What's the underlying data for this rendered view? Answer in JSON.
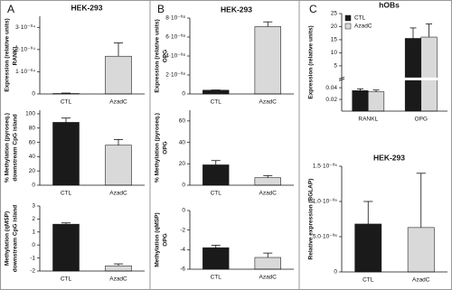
{
  "chart_data": [
    {
      "type": "bar",
      "panel_label": "A",
      "title": "HEK-293",
      "ylabel": [
        "Expression (relative units)",
        "RANKL"
      ],
      "categories": [
        "CTL",
        "AzadC"
      ],
      "values": [
        2e-06,
        0.00017
      ],
      "errors": [
        2e-06,
        6e-05
      ],
      "colors": [
        "#1a1a1a",
        "#d9d9d9"
      ],
      "ylim": [
        0,
        0.00035
      ],
      "yticks": [
        0,
        {
          "value": 0.0001,
          "label": "1·10⁻⁰⁴"
        },
        {
          "value": 0.0002,
          "label": "2·10⁻⁰⁴"
        },
        {
          "value": 0.0003,
          "label": "3·10⁻⁰⁴"
        }
      ]
    },
    {
      "type": "bar",
      "ylabel": [
        "% Methylation (pyroseq.)",
        "downstream CpG island"
      ],
      "categories": [
        "CTL",
        "AzadC"
      ],
      "values": [
        88,
        56
      ],
      "errors": [
        6,
        8
      ],
      "colors": [
        "#1a1a1a",
        "#d9d9d9"
      ],
      "ylim": [
        0,
        105
      ],
      "yticks": [
        0,
        20,
        40,
        60,
        80,
        100
      ]
    },
    {
      "type": "bar",
      "ylabel": [
        "Methylation (qMSP)",
        "downstream CpG island"
      ],
      "categories": [
        "CTL",
        "AzadC"
      ],
      "values": [
        1.6,
        -1.6
      ],
      "errors": [
        0.1,
        0.15
      ],
      "colors": [
        "#1a1a1a",
        "#d9d9d9"
      ],
      "ylim": [
        -2,
        3
      ],
      "yticks": [
        -2,
        -1,
        0,
        1,
        2,
        3
      ]
    },
    {
      "type": "bar",
      "panel_label": "B",
      "title": "HEK-293",
      "ylabel": [
        "Expression (relative units)",
        "OPG"
      ],
      "categories": [
        "CTL",
        "AzadC"
      ],
      "values": [
        4e-09,
        7.1e-08
      ],
      "errors": [
        2e-10,
        5e-09
      ],
      "colors": [
        "#1a1a1a",
        "#d9d9d9"
      ],
      "ylim": [
        0,
        8e-08
      ],
      "yticks": [
        0,
        {
          "value": 2e-08,
          "label": "2·10⁻⁰⁸"
        },
        {
          "value": 4e-08,
          "label": "4·10⁻⁰⁸"
        },
        {
          "value": 6e-08,
          "label": "6·10⁻⁰⁸"
        },
        {
          "value": 8e-08,
          "label": "8·10⁻⁰⁸"
        }
      ]
    },
    {
      "type": "bar",
      "ylabel": [
        "% Methylation (pyroseq.)",
        "OPG"
      ],
      "categories": [
        "CTL",
        "AzadC"
      ],
      "values": [
        19,
        7
      ],
      "errors": [
        4,
        2
      ],
      "colors": [
        "#1a1a1a",
        "#d9d9d9"
      ],
      "ylim": [
        0,
        70
      ],
      "yticks": [
        0,
        20,
        40,
        60
      ]
    },
    {
      "type": "bar",
      "ylabel": [
        "Methylation (qMSP)",
        "OPG"
      ],
      "categories": [
        "CTL",
        "AzadC"
      ],
      "values": [
        -3.8,
        -4.8
      ],
      "errors": [
        0.25,
        0.45
      ],
      "colors": [
        "#1a1a1a",
        "#d9d9d9"
      ],
      "ylim": [
        -6,
        0
      ],
      "yticks": [
        -6,
        -4,
        -2,
        0
      ]
    },
    {
      "type": "grouped-bar",
      "panel_label": "C",
      "title": "hOBs",
      "ylabel": [
        "Expression (relative units)"
      ],
      "categories": [
        "RANKL",
        "OPG"
      ],
      "legend": "upper left",
      "series": [
        {
          "name": "CTL",
          "color": "#1a1a1a",
          "values": [
            0.035,
            15.5
          ],
          "errors": [
            0.003,
            4
          ]
        },
        {
          "name": "AzadC",
          "color": "#d9d9d9",
          "values": [
            0.033,
            16
          ],
          "errors": [
            0.003,
            5
          ]
        }
      ],
      "ylim": [
        0,
        25
      ],
      "axis_break": [
        0.055,
        0
      ],
      "yticks": [
        0.02,
        0.04,
        5,
        10,
        15,
        20,
        25
      ]
    },
    {
      "type": "bar",
      "title": "HEK-293",
      "ylabel": [
        "Relative expression (BGLAP)"
      ],
      "categories": [
        "CTL",
        "AzadC"
      ],
      "values": [
        6.8e-06,
        6.3e-06
      ],
      "errors": [
        3.2e-06,
        7.7e-06
      ],
      "colors": [
        "#1a1a1a",
        "#d9d9d9"
      ],
      "ylim": [
        0,
        1.5e-05
      ],
      "yticks": [
        0,
        {
          "value": 5e-06,
          "label": "5.0·10⁻⁰⁶"
        },
        {
          "value": 1e-05,
          "label": "1.0·10⁻⁰⁵"
        },
        {
          "value": 1.5e-05,
          "label": "1.5·10⁻⁰⁵"
        }
      ]
    }
  ]
}
